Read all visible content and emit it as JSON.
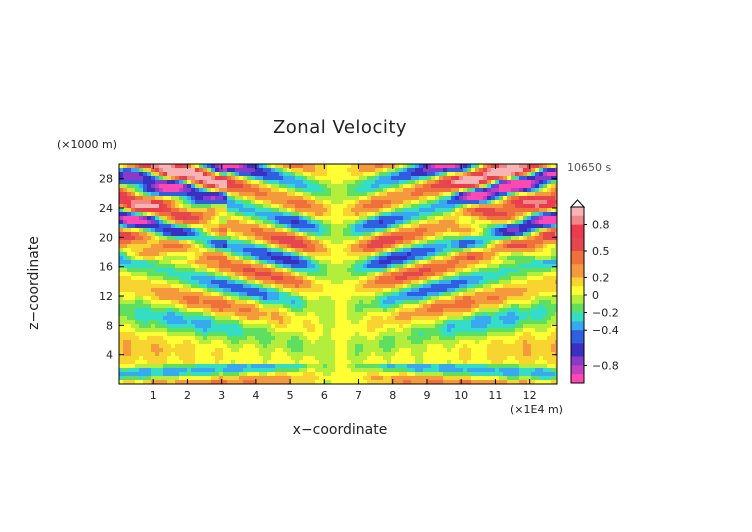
{
  "chart_data": {
    "type": "heatmap",
    "title": "Zonal Velocity",
    "xlabel": "x−coordinate",
    "ylabel": "z−coordinate",
    "x_unit": "(×1E4 m)",
    "y_unit": "(×1000 m)",
    "time_label": "10650 s",
    "x_ticks": [
      1,
      2,
      3,
      4,
      5,
      6,
      7,
      8,
      9,
      10,
      11,
      12
    ],
    "y_ticks": [
      4,
      8,
      12,
      16,
      20,
      24,
      28
    ],
    "xlim": [
      0,
      12.8
    ],
    "ylim": [
      0,
      30
    ],
    "colorbar": {
      "tick_labels": [
        "0.8",
        "0.5",
        "0.2",
        "0",
        "−0.2",
        "−0.4",
        "−0.8"
      ],
      "tick_values": [
        0.8,
        0.5,
        0.2,
        0,
        -0.2,
        -0.4,
        -0.8
      ],
      "bands": [
        {
          "from": 0.9,
          "to": 1.0,
          "color": "#f7b4b4"
        },
        {
          "from": 0.8,
          "to": 0.9,
          "color": "#f08a8a"
        },
        {
          "from": 0.65,
          "to": 0.8,
          "color": "#ee3a4e"
        },
        {
          "from": 0.5,
          "to": 0.65,
          "color": "#e4484e"
        },
        {
          "from": 0.35,
          "to": 0.5,
          "color": "#f0703c"
        },
        {
          "from": 0.2,
          "to": 0.35,
          "color": "#f49a3c"
        },
        {
          "from": 0.1,
          "to": 0.2,
          "color": "#f8d430"
        },
        {
          "from": 0.0,
          "to": 0.1,
          "color": "#ffff33"
        },
        {
          "from": -0.1,
          "to": 0.0,
          "color": "#b4ee3c"
        },
        {
          "from": -0.2,
          "to": -0.1,
          "color": "#5fdf5f"
        },
        {
          "from": -0.3,
          "to": -0.2,
          "color": "#33ddc6"
        },
        {
          "from": -0.4,
          "to": -0.3,
          "color": "#38a8f0"
        },
        {
          "from": -0.55,
          "to": -0.4,
          "color": "#2f5fe0"
        },
        {
          "from": -0.7,
          "to": -0.55,
          "color": "#3a2fc0"
        },
        {
          "from": -0.8,
          "to": -0.7,
          "color": "#8a3ac8"
        },
        {
          "from": -0.9,
          "to": -0.8,
          "color": "#c040c0"
        },
        {
          "from": -1.0,
          "to": -0.9,
          "color": "#ff48b4"
        }
      ]
    }
  }
}
